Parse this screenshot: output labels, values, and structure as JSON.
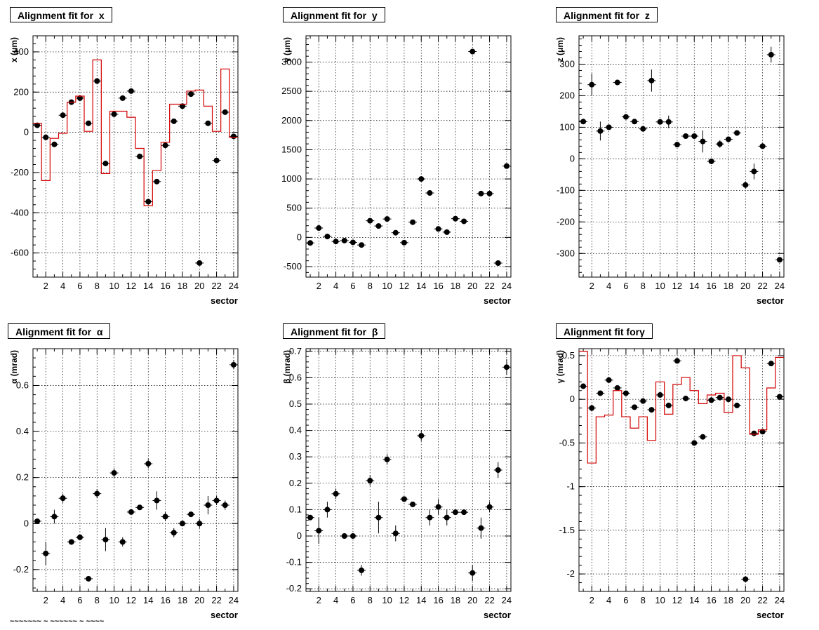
{
  "chart_data": [
    {
      "type": "scatter",
      "title": "Alignment fit for  x",
      "xlabel": "sector",
      "ylabel": "x (μm)",
      "xlim": [
        0.5,
        24.5
      ],
      "ylim": [
        -720,
        480
      ],
      "yticks": [
        -600,
        -400,
        -200,
        0,
        200,
        400
      ],
      "grid": true,
      "x": [
        1,
        2,
        3,
        4,
        5,
        6,
        7,
        8,
        9,
        10,
        11,
        12,
        13,
        14,
        15,
        16,
        17,
        18,
        19,
        20,
        21,
        22,
        23,
        24
      ],
      "series": [
        {
          "values": [
            35,
            -25,
            -60,
            85,
            150,
            170,
            45,
            255,
            -155,
            90,
            170,
            205,
            -120,
            -345,
            -245,
            -65,
            55,
            130,
            190,
            -650,
            45,
            -140,
            100,
            -20
          ],
          "errors": [
            8,
            8,
            8,
            8,
            8,
            8,
            8,
            8,
            8,
            8,
            8,
            8,
            8,
            8,
            8,
            8,
            8,
            8,
            8,
            8,
            8,
            8,
            8,
            8
          ]
        },
        {
          "kind": "step",
          "color": "#d40000",
          "values": [
            45,
            -240,
            -30,
            -5,
            150,
            180,
            5,
            360,
            -205,
            105,
            105,
            75,
            -80,
            -365,
            -190,
            -50,
            140,
            140,
            205,
            210,
            130,
            5,
            315,
            -25
          ]
        }
      ]
    },
    {
      "type": "scatter",
      "title": "Alignment fit for  y",
      "xlabel": "sector",
      "ylabel": "y (μm)",
      "xlim": [
        0.5,
        24.5
      ],
      "ylim": [
        -680,
        3450
      ],
      "yticks": [
        -500,
        0,
        500,
        1000,
        1500,
        2000,
        2500,
        3000
      ],
      "grid": true,
      "x": [
        1,
        2,
        3,
        4,
        5,
        6,
        7,
        8,
        9,
        10,
        11,
        12,
        13,
        14,
        15,
        16,
        17,
        18,
        19,
        20,
        21,
        22,
        23,
        24
      ],
      "series": [
        {
          "values": [
            -95,
            160,
            15,
            -70,
            -55,
            -85,
            -130,
            285,
            195,
            315,
            80,
            -90,
            260,
            1000,
            760,
            145,
            90,
            320,
            275,
            3180,
            750,
            750,
            -440,
            1220
          ],
          "errors": [
            20,
            40,
            20,
            20,
            20,
            20,
            20,
            30,
            40,
            30,
            30,
            30,
            20,
            30,
            40,
            30,
            30,
            30,
            30,
            40,
            30,
            30,
            30,
            30
          ]
        }
      ]
    },
    {
      "type": "scatter",
      "title": "Alignment fit for  z",
      "xlabel": "sector",
      "ylabel": "z (μm)",
      "xlim": [
        0.5,
        24.5
      ],
      "ylim": [
        -375,
        390
      ],
      "yticks": [
        -300,
        -200,
        -100,
        0,
        100,
        200,
        300
      ],
      "grid": true,
      "x": [
        1,
        2,
        3,
        4,
        5,
        6,
        7,
        8,
        9,
        10,
        11,
        12,
        13,
        14,
        15,
        16,
        17,
        18,
        19,
        20,
        21,
        22,
        23,
        24
      ],
      "series": [
        {
          "values": [
            118,
            235,
            88,
            100,
            242,
            133,
            118,
            95,
            248,
            117,
            117,
            45,
            72,
            72,
            55,
            -8,
            47,
            62,
            82,
            -83,
            -40,
            40,
            330,
            -320
          ],
          "errors": [
            8,
            35,
            30,
            8,
            8,
            8,
            8,
            8,
            35,
            8,
            20,
            8,
            8,
            8,
            35,
            8,
            12,
            8,
            8,
            12,
            25,
            8,
            25,
            8
          ]
        }
      ]
    },
    {
      "type": "scatter",
      "title": "Alignment fit for  α",
      "xlabel": "sector",
      "ylabel": "α (mrad)",
      "xlim": [
        0.5,
        24.5
      ],
      "ylim": [
        -0.295,
        0.76
      ],
      "yticks": [
        -0.2,
        0,
        0.2,
        0.4,
        0.6
      ],
      "grid": true,
      "x": [
        1,
        2,
        3,
        4,
        5,
        6,
        7,
        8,
        9,
        10,
        11,
        12,
        13,
        14,
        15,
        16,
        17,
        18,
        19,
        20,
        21,
        22,
        23,
        24
      ],
      "series": [
        {
          "values": [
            0.01,
            -0.13,
            0.03,
            0.11,
            -0.08,
            -0.06,
            -0.24,
            0.13,
            -0.07,
            0.22,
            -0.08,
            0.05,
            0.07,
            0.26,
            0.1,
            0.03,
            -0.04,
            0.0,
            0.04,
            0.0,
            0.08,
            0.1,
            0.08,
            0.69
          ],
          "errors": [
            0.01,
            0.05,
            0.03,
            0.02,
            0.01,
            0.01,
            0.01,
            0.02,
            0.05,
            0.02,
            0.02,
            0.01,
            0.01,
            0.02,
            0.04,
            0.02,
            0.02,
            0.01,
            0.01,
            0.02,
            0.04,
            0.02,
            0.02,
            0.02
          ]
        }
      ]
    },
    {
      "type": "scatter",
      "title": "Alignment fit for  β",
      "xlabel": "sector",
      "ylabel": "β (mrad)",
      "xlim": [
        0.5,
        24.5
      ],
      "ylim": [
        -0.21,
        0.71
      ],
      "yticks": [
        -0.2,
        -0.1,
        0,
        0.1,
        0.2,
        0.3,
        0.4,
        0.5,
        0.6,
        0.7
      ],
      "grid": true,
      "x": [
        1,
        2,
        3,
        4,
        5,
        6,
        7,
        8,
        9,
        10,
        11,
        12,
        13,
        14,
        15,
        16,
        17,
        18,
        19,
        20,
        21,
        22,
        23,
        24
      ],
      "series": [
        {
          "values": [
            0.07,
            0.02,
            0.1,
            0.16,
            0.0,
            0.0,
            -0.13,
            0.21,
            0.07,
            0.29,
            0.01,
            0.14,
            0.12,
            0.38,
            0.07,
            0.11,
            0.07,
            0.09,
            0.09,
            -0.14,
            0.03,
            0.11,
            0.25,
            0.64
          ],
          "errors": [
            0.01,
            0.05,
            0.03,
            0.02,
            0.01,
            0.01,
            0.02,
            0.02,
            0.06,
            0.02,
            0.03,
            0.01,
            0.01,
            0.02,
            0.03,
            0.03,
            0.03,
            0.01,
            0.01,
            0.03,
            0.04,
            0.02,
            0.03,
            0.03
          ]
        }
      ]
    },
    {
      "type": "scatter",
      "title": "Alignment fit forγ",
      "xlabel": "sector",
      "ylabel": "γ (mrad)",
      "xlim": [
        0.5,
        24.5
      ],
      "ylim": [
        -2.2,
        0.58
      ],
      "yticks": [
        -2,
        -1.5,
        -1,
        -0.5,
        0,
        0.5
      ],
      "grid": true,
      "x": [
        1,
        2,
        3,
        4,
        5,
        6,
        7,
        8,
        9,
        10,
        11,
        12,
        13,
        14,
        15,
        16,
        17,
        18,
        19,
        20,
        21,
        22,
        23,
        24
      ],
      "series": [
        {
          "values": [
            0.15,
            -0.1,
            0.07,
            0.22,
            0.13,
            0.07,
            -0.09,
            -0.02,
            -0.12,
            0.05,
            -0.07,
            0.44,
            0.01,
            -0.5,
            -0.43,
            -0.01,
            0.02,
            0.0,
            -0.07,
            -2.06,
            -0.39,
            -0.37,
            0.41,
            0.03
          ],
          "errors": [
            0.02,
            0.04,
            0.02,
            0.02,
            0.02,
            0.02,
            0.02,
            0.02,
            0.02,
            0.02,
            0.02,
            0.02,
            0.02,
            0.02,
            0.02,
            0.02,
            0.02,
            0.02,
            0.02,
            0.02,
            0.02,
            0.02,
            0.02,
            0.02
          ]
        },
        {
          "kind": "step",
          "color": "#d40000",
          "values": [
            0.55,
            -0.73,
            -0.2,
            -0.18,
            0.1,
            -0.2,
            -0.33,
            -0.2,
            -0.47,
            0.2,
            -0.17,
            0.17,
            0.25,
            0.1,
            -0.05,
            0.05,
            0.07,
            -0.15,
            0.5,
            0.36,
            -0.4,
            -0.35,
            0.13,
            0.48
          ]
        }
      ]
    }
  ],
  "footer_text": "~~~~~~~ ~ ~~~~~~ ~ ~~~~"
}
